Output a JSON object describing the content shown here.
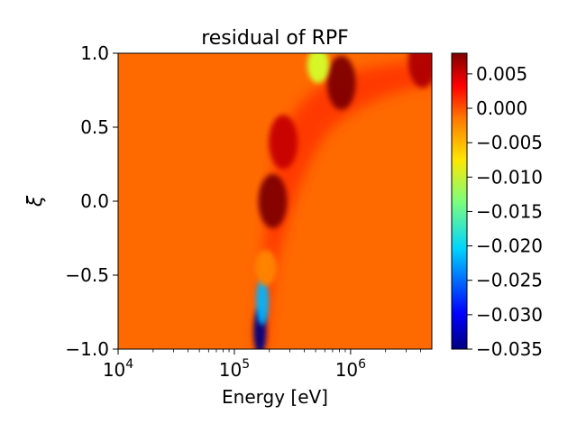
{
  "chart_data": {
    "type": "heatmap",
    "title": "residual of RPF",
    "xlabel": "Energy [eV]",
    "ylabel": "ξ",
    "x_scale": "log",
    "xlim": [
      10000,
      5000000
    ],
    "ylim": [
      -1.0,
      1.0
    ],
    "x_ticks": [
      {
        "value": 10000,
        "base": "10",
        "exp": "4"
      },
      {
        "value": 100000,
        "base": "10",
        "exp": "5"
      },
      {
        "value": 1000000,
        "base": "10",
        "exp": "6"
      }
    ],
    "y_ticks": [
      {
        "value": 1.0,
        "label": "1.0"
      },
      {
        "value": 0.5,
        "label": "0.5"
      },
      {
        "value": 0.0,
        "label": "0.0"
      },
      {
        "value": -0.5,
        "label": "−0.5"
      },
      {
        "value": -1.0,
        "label": "−1.0"
      }
    ],
    "colorbar": {
      "colormap": "jet",
      "range": [
        -0.035,
        0.008
      ],
      "ticks": [
        {
          "value": 0.005,
          "label": "0.005"
        },
        {
          "value": 0.0,
          "label": "0.000"
        },
        {
          "value": -0.005,
          "label": "−0.005"
        },
        {
          "value": -0.01,
          "label": "−0.010"
        },
        {
          "value": -0.015,
          "label": "−0.015"
        },
        {
          "value": -0.02,
          "label": "−0.020"
        },
        {
          "value": -0.025,
          "label": "−0.025"
        },
        {
          "value": -0.03,
          "label": "−0.030"
        },
        {
          "value": -0.035,
          "label": "−0.035"
        }
      ]
    },
    "background_value": 0.0,
    "features": [
      {
        "log10_energy": 5.22,
        "xi": -0.88,
        "value": -0.035
      },
      {
        "log10_energy": 5.24,
        "xi": -0.68,
        "value": -0.022
      },
      {
        "log10_energy": 5.27,
        "xi": -0.45,
        "value": -0.003
      },
      {
        "log10_energy": 5.33,
        "xi": 0.0,
        "value": 0.008
      },
      {
        "log10_energy": 5.42,
        "xi": 0.4,
        "value": 0.005
      },
      {
        "log10_energy": 5.92,
        "xi": 0.8,
        "value": 0.008
      },
      {
        "log10_energy": 5.72,
        "xi": 0.92,
        "value": -0.01
      },
      {
        "log10_energy": 6.62,
        "xi": 0.95,
        "value": 0.006
      }
    ]
  }
}
